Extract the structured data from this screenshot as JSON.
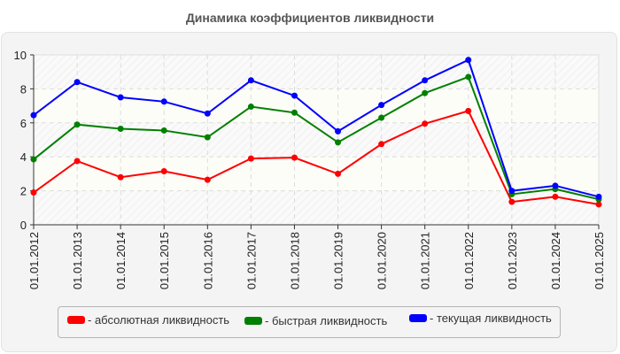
{
  "title": "Динамика коэффициентов ликвидности",
  "chart_data": {
    "type": "line",
    "title": "Динамика коэффициентов ликвидности",
    "xlabel": "",
    "ylabel": "",
    "ylim": [
      0,
      10
    ],
    "yticks": [
      0,
      2,
      4,
      6,
      8,
      10
    ],
    "grid": true,
    "legend_position": "bottom",
    "categories": [
      "01.01.2012",
      "01.01.2013",
      "01.01.2014",
      "01.01.2015",
      "01.01.2016",
      "01.01.2017",
      "01.01.2018",
      "01.01.2019",
      "01.01.2020",
      "01.01.2021",
      "01.01.2022",
      "01.01.2023",
      "01.01.2024",
      "01.01.2025"
    ],
    "series": [
      {
        "name": "абсолютная ликвидность",
        "color": "#ff0000",
        "values": [
          1.9,
          3.75,
          2.8,
          3.15,
          2.65,
          3.9,
          3.95,
          3.0,
          4.75,
          5.95,
          6.7,
          1.35,
          1.65,
          1.2
        ]
      },
      {
        "name": "быстрая ликвидность",
        "color": "#008000",
        "values": [
          3.85,
          5.9,
          5.65,
          5.55,
          5.15,
          6.95,
          6.6,
          4.85,
          6.3,
          7.75,
          8.7,
          1.8,
          2.1,
          1.5
        ]
      },
      {
        "name": "текущая ликвидность",
        "color": "#0000ff",
        "values": [
          6.45,
          8.4,
          7.5,
          7.25,
          6.55,
          8.5,
          7.6,
          5.5,
          7.05,
          8.5,
          9.7,
          2.0,
          2.3,
          1.65
        ]
      }
    ]
  },
  "legend": {
    "items": [
      {
        "label": "- абсолютная ликвидность",
        "color": "#ff0000"
      },
      {
        "label": "- быстрая ликвидность",
        "color": "#008000"
      },
      {
        "label": "- текущая ликвидность",
        "color": "#0000ff"
      }
    ]
  }
}
